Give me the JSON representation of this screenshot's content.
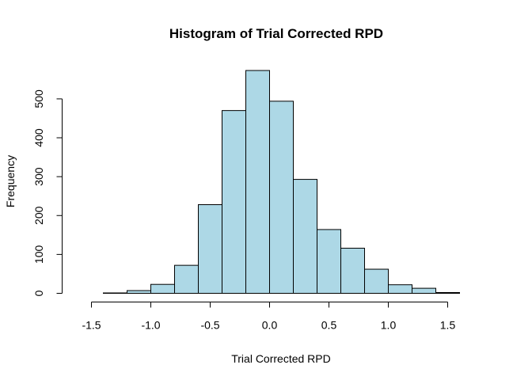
{
  "chart_data": {
    "type": "bar",
    "subtype": "histogram",
    "title": "Histogram of Trial Corrected RPD",
    "xlabel": "Trial Corrected RPD",
    "ylabel": "Frequency",
    "bar_color": "#add8e6",
    "bin_width": 0.2,
    "bins": [
      {
        "start": -1.4,
        "end": -1.2,
        "count": 1
      },
      {
        "start": -1.2,
        "end": -1.0,
        "count": 7
      },
      {
        "start": -1.0,
        "end": -0.8,
        "count": 23
      },
      {
        "start": -0.8,
        "end": -0.6,
        "count": 72
      },
      {
        "start": -0.6,
        "end": -0.4,
        "count": 228
      },
      {
        "start": -0.4,
        "end": -0.2,
        "count": 470
      },
      {
        "start": -0.2,
        "end": 0.0,
        "count": 573
      },
      {
        "start": 0.0,
        "end": 0.2,
        "count": 494
      },
      {
        "start": 0.2,
        "end": 0.4,
        "count": 293
      },
      {
        "start": 0.4,
        "end": 0.6,
        "count": 164
      },
      {
        "start": 0.6,
        "end": 0.8,
        "count": 116
      },
      {
        "start": 0.8,
        "end": 1.0,
        "count": 62
      },
      {
        "start": 1.0,
        "end": 1.2,
        "count": 22
      },
      {
        "start": 1.2,
        "end": 1.4,
        "count": 13
      },
      {
        "start": 1.4,
        "end": 1.6,
        "count": 2
      }
    ],
    "xlim": [
      -1.6,
      1.6
    ],
    "ylim": [
      0,
      573
    ],
    "x_ticks": [
      -1.5,
      -1.0,
      -0.5,
      0.0,
      0.5,
      1.0,
      1.5
    ],
    "x_tick_labels": [
      "-1.5",
      "-1.0",
      "-0.5",
      "0.0",
      "0.5",
      "1.0",
      "1.5"
    ],
    "y_ticks": [
      0,
      100,
      200,
      300,
      400,
      500
    ],
    "y_tick_labels": [
      "0",
      "100",
      "200",
      "300",
      "400",
      "500"
    ],
    "grid": false,
    "legend": "none"
  }
}
